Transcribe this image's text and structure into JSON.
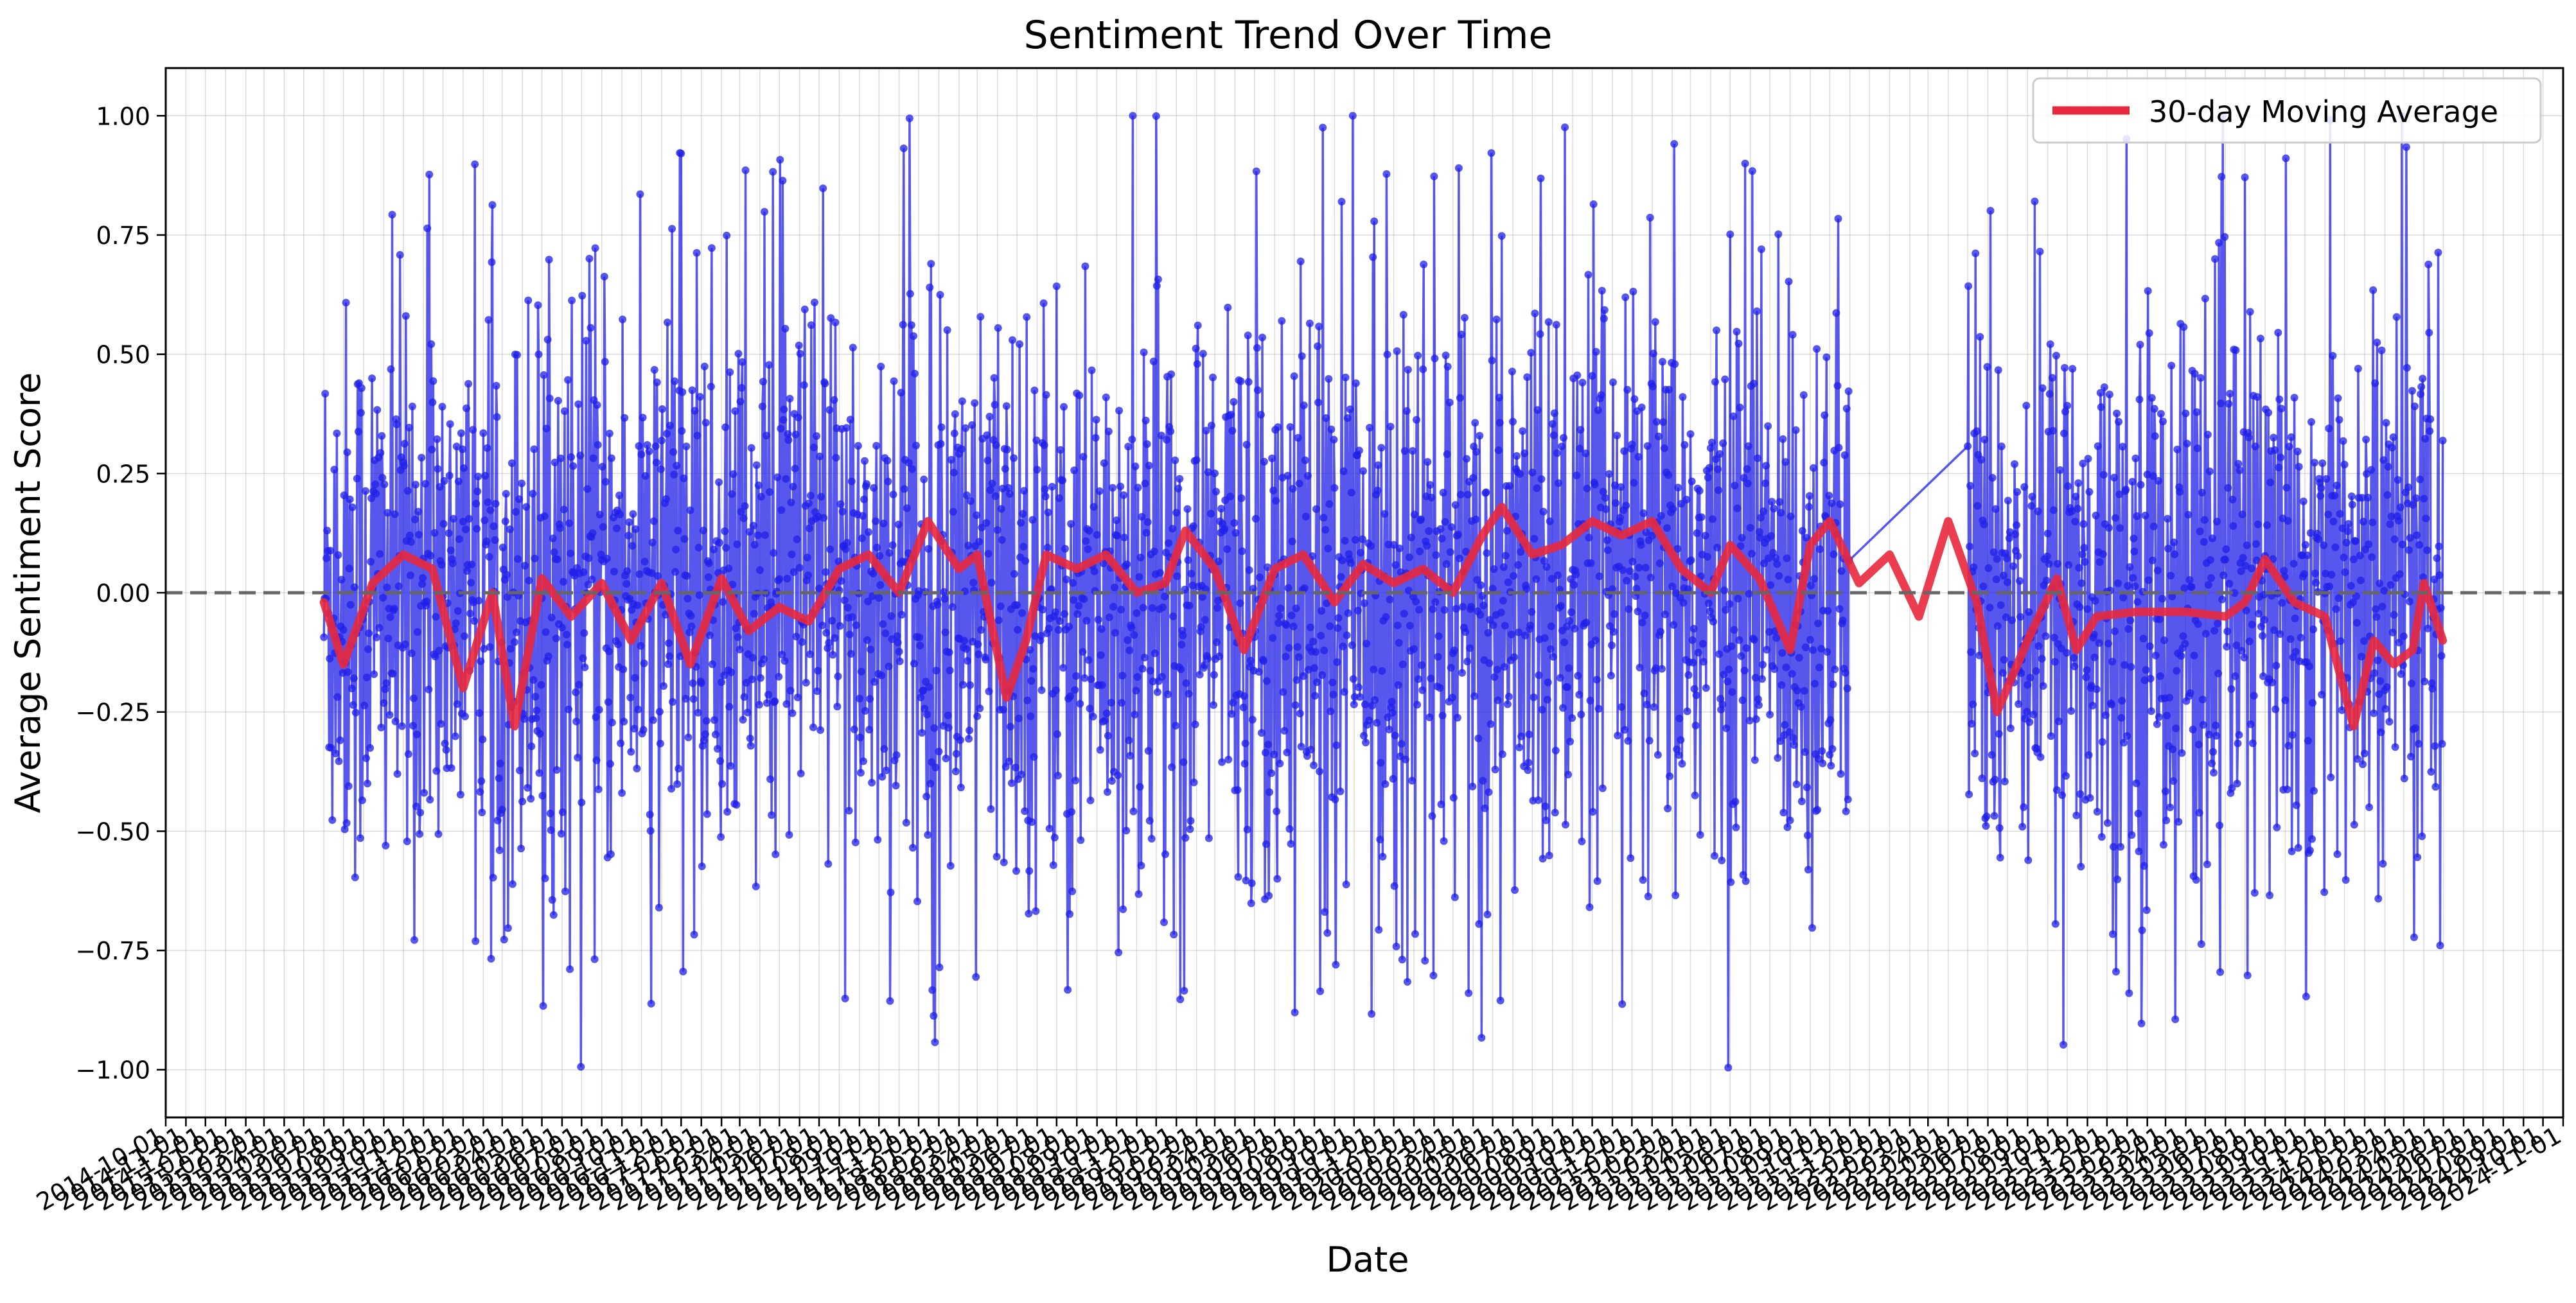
{
  "chart_data": {
    "type": "line",
    "title": "Sentiment Trend Over Time",
    "xlabel": "Date",
    "ylabel": "Average Sentiment Score",
    "xlim": [
      "2014-10-01",
      "2024-11-01"
    ],
    "ylim": [
      -1.1,
      1.1
    ],
    "yticks": [
      1.0,
      0.75,
      0.5,
      0.25,
      0.0,
      -0.25,
      -0.5,
      -0.75,
      -1.0
    ],
    "ytick_labels": [
      "1.00",
      "0.75",
      "0.50",
      "0.25",
      "0.00",
      "−0.25",
      "−0.50",
      "−0.75",
      "−1.00"
    ],
    "xtick_step_months": 1,
    "xtick_format": "YYYY-MM-DD",
    "xtick_rotation_deg": -30,
    "grid": true,
    "reference_line": {
      "y": 0.0,
      "style": "dashed",
      "color": "#666666"
    },
    "legend": {
      "position": "top-right",
      "entries": [
        "30-day Moving Average"
      ]
    },
    "series": [
      {
        "kind": "daily",
        "color": "#1f1fe8",
        "marker": "circle",
        "segments": [
          {
            "start": "2015-06-01",
            "end": "2021-10-31"
          },
          {
            "start": "2022-05-01",
            "end": "2024-04-30"
          }
        ],
        "value_range": [
          -1.0,
          1.0
        ]
      },
      {
        "kind": "moving-average",
        "name": "30-day Moving Average",
        "color": "#e8283c",
        "points": [
          [
            "2015-06-01",
            -0.02
          ],
          [
            "2015-07-01",
            -0.15
          ],
          [
            "2015-08-15",
            0.02
          ],
          [
            "2015-10-01",
            0.08
          ],
          [
            "2015-11-15",
            0.05
          ],
          [
            "2016-01-01",
            -0.2
          ],
          [
            "2016-02-15",
            0.0
          ],
          [
            "2016-03-20",
            -0.28
          ],
          [
            "2016-05-01",
            0.03
          ],
          [
            "2016-06-15",
            -0.05
          ],
          [
            "2016-08-01",
            0.02
          ],
          [
            "2016-09-15",
            -0.1
          ],
          [
            "2016-11-01",
            0.02
          ],
          [
            "2016-12-15",
            -0.15
          ],
          [
            "2017-02-01",
            0.03
          ],
          [
            "2017-03-15",
            -0.08
          ],
          [
            "2017-05-01",
            -0.03
          ],
          [
            "2017-06-15",
            -0.06
          ],
          [
            "2017-08-01",
            0.05
          ],
          [
            "2017-09-15",
            0.08
          ],
          [
            "2017-11-01",
            0.0
          ],
          [
            "2017-12-15",
            0.15
          ],
          [
            "2018-02-01",
            0.05
          ],
          [
            "2018-03-01",
            0.08
          ],
          [
            "2018-04-15",
            -0.22
          ],
          [
            "2018-05-15",
            -0.1
          ],
          [
            "2018-06-15",
            0.08
          ],
          [
            "2018-08-01",
            0.05
          ],
          [
            "2018-09-15",
            0.08
          ],
          [
            "2018-11-01",
            0.0
          ],
          [
            "2018-12-15",
            0.02
          ],
          [
            "2019-01-15",
            0.13
          ],
          [
            "2019-03-01",
            0.05
          ],
          [
            "2019-04-15",
            -0.12
          ],
          [
            "2019-06-01",
            0.05
          ],
          [
            "2019-07-15",
            0.08
          ],
          [
            "2019-09-01",
            -0.02
          ],
          [
            "2019-10-15",
            0.06
          ],
          [
            "2019-12-01",
            0.02
          ],
          [
            "2020-01-15",
            0.05
          ],
          [
            "2020-03-01",
            0.0
          ],
          [
            "2020-04-15",
            0.12
          ],
          [
            "2020-05-15",
            0.18
          ],
          [
            "2020-07-01",
            0.08
          ],
          [
            "2020-08-15",
            0.1
          ],
          [
            "2020-10-01",
            0.15
          ],
          [
            "2020-11-15",
            0.12
          ],
          [
            "2021-01-01",
            0.15
          ],
          [
            "2021-02-15",
            0.05
          ],
          [
            "2021-04-01",
            0.0
          ],
          [
            "2021-05-01",
            0.1
          ],
          [
            "2021-06-15",
            0.03
          ],
          [
            "2021-08-01",
            -0.12
          ],
          [
            "2021-09-01",
            0.1
          ],
          [
            "2021-10-01",
            0.15
          ],
          [
            "2021-11-15",
            0.02
          ],
          [
            "2022-01-01",
            0.08
          ],
          [
            "2022-02-15",
            -0.05
          ],
          [
            "2022-04-01",
            0.15
          ],
          [
            "2022-05-15",
            -0.02
          ],
          [
            "2022-06-15",
            -0.25
          ],
          [
            "2022-08-01",
            -0.1
          ],
          [
            "2022-09-15",
            0.03
          ],
          [
            "2022-10-15",
            -0.12
          ],
          [
            "2022-11-15",
            -0.05
          ],
          [
            "2023-01-15",
            -0.04
          ],
          [
            "2023-04-01",
            -0.04
          ],
          [
            "2023-06-01",
            -0.05
          ],
          [
            "2023-07-01",
            -0.02
          ],
          [
            "2023-08-01",
            0.07
          ],
          [
            "2023-09-15",
            -0.02
          ],
          [
            "2023-11-01",
            -0.05
          ],
          [
            "2023-12-15",
            -0.28
          ],
          [
            "2024-01-15",
            -0.1
          ],
          [
            "2024-02-15",
            -0.15
          ],
          [
            "2024-03-15",
            -0.12
          ],
          [
            "2024-04-01",
            0.02
          ],
          [
            "2024-04-30",
            -0.1
          ]
        ]
      }
    ]
  }
}
